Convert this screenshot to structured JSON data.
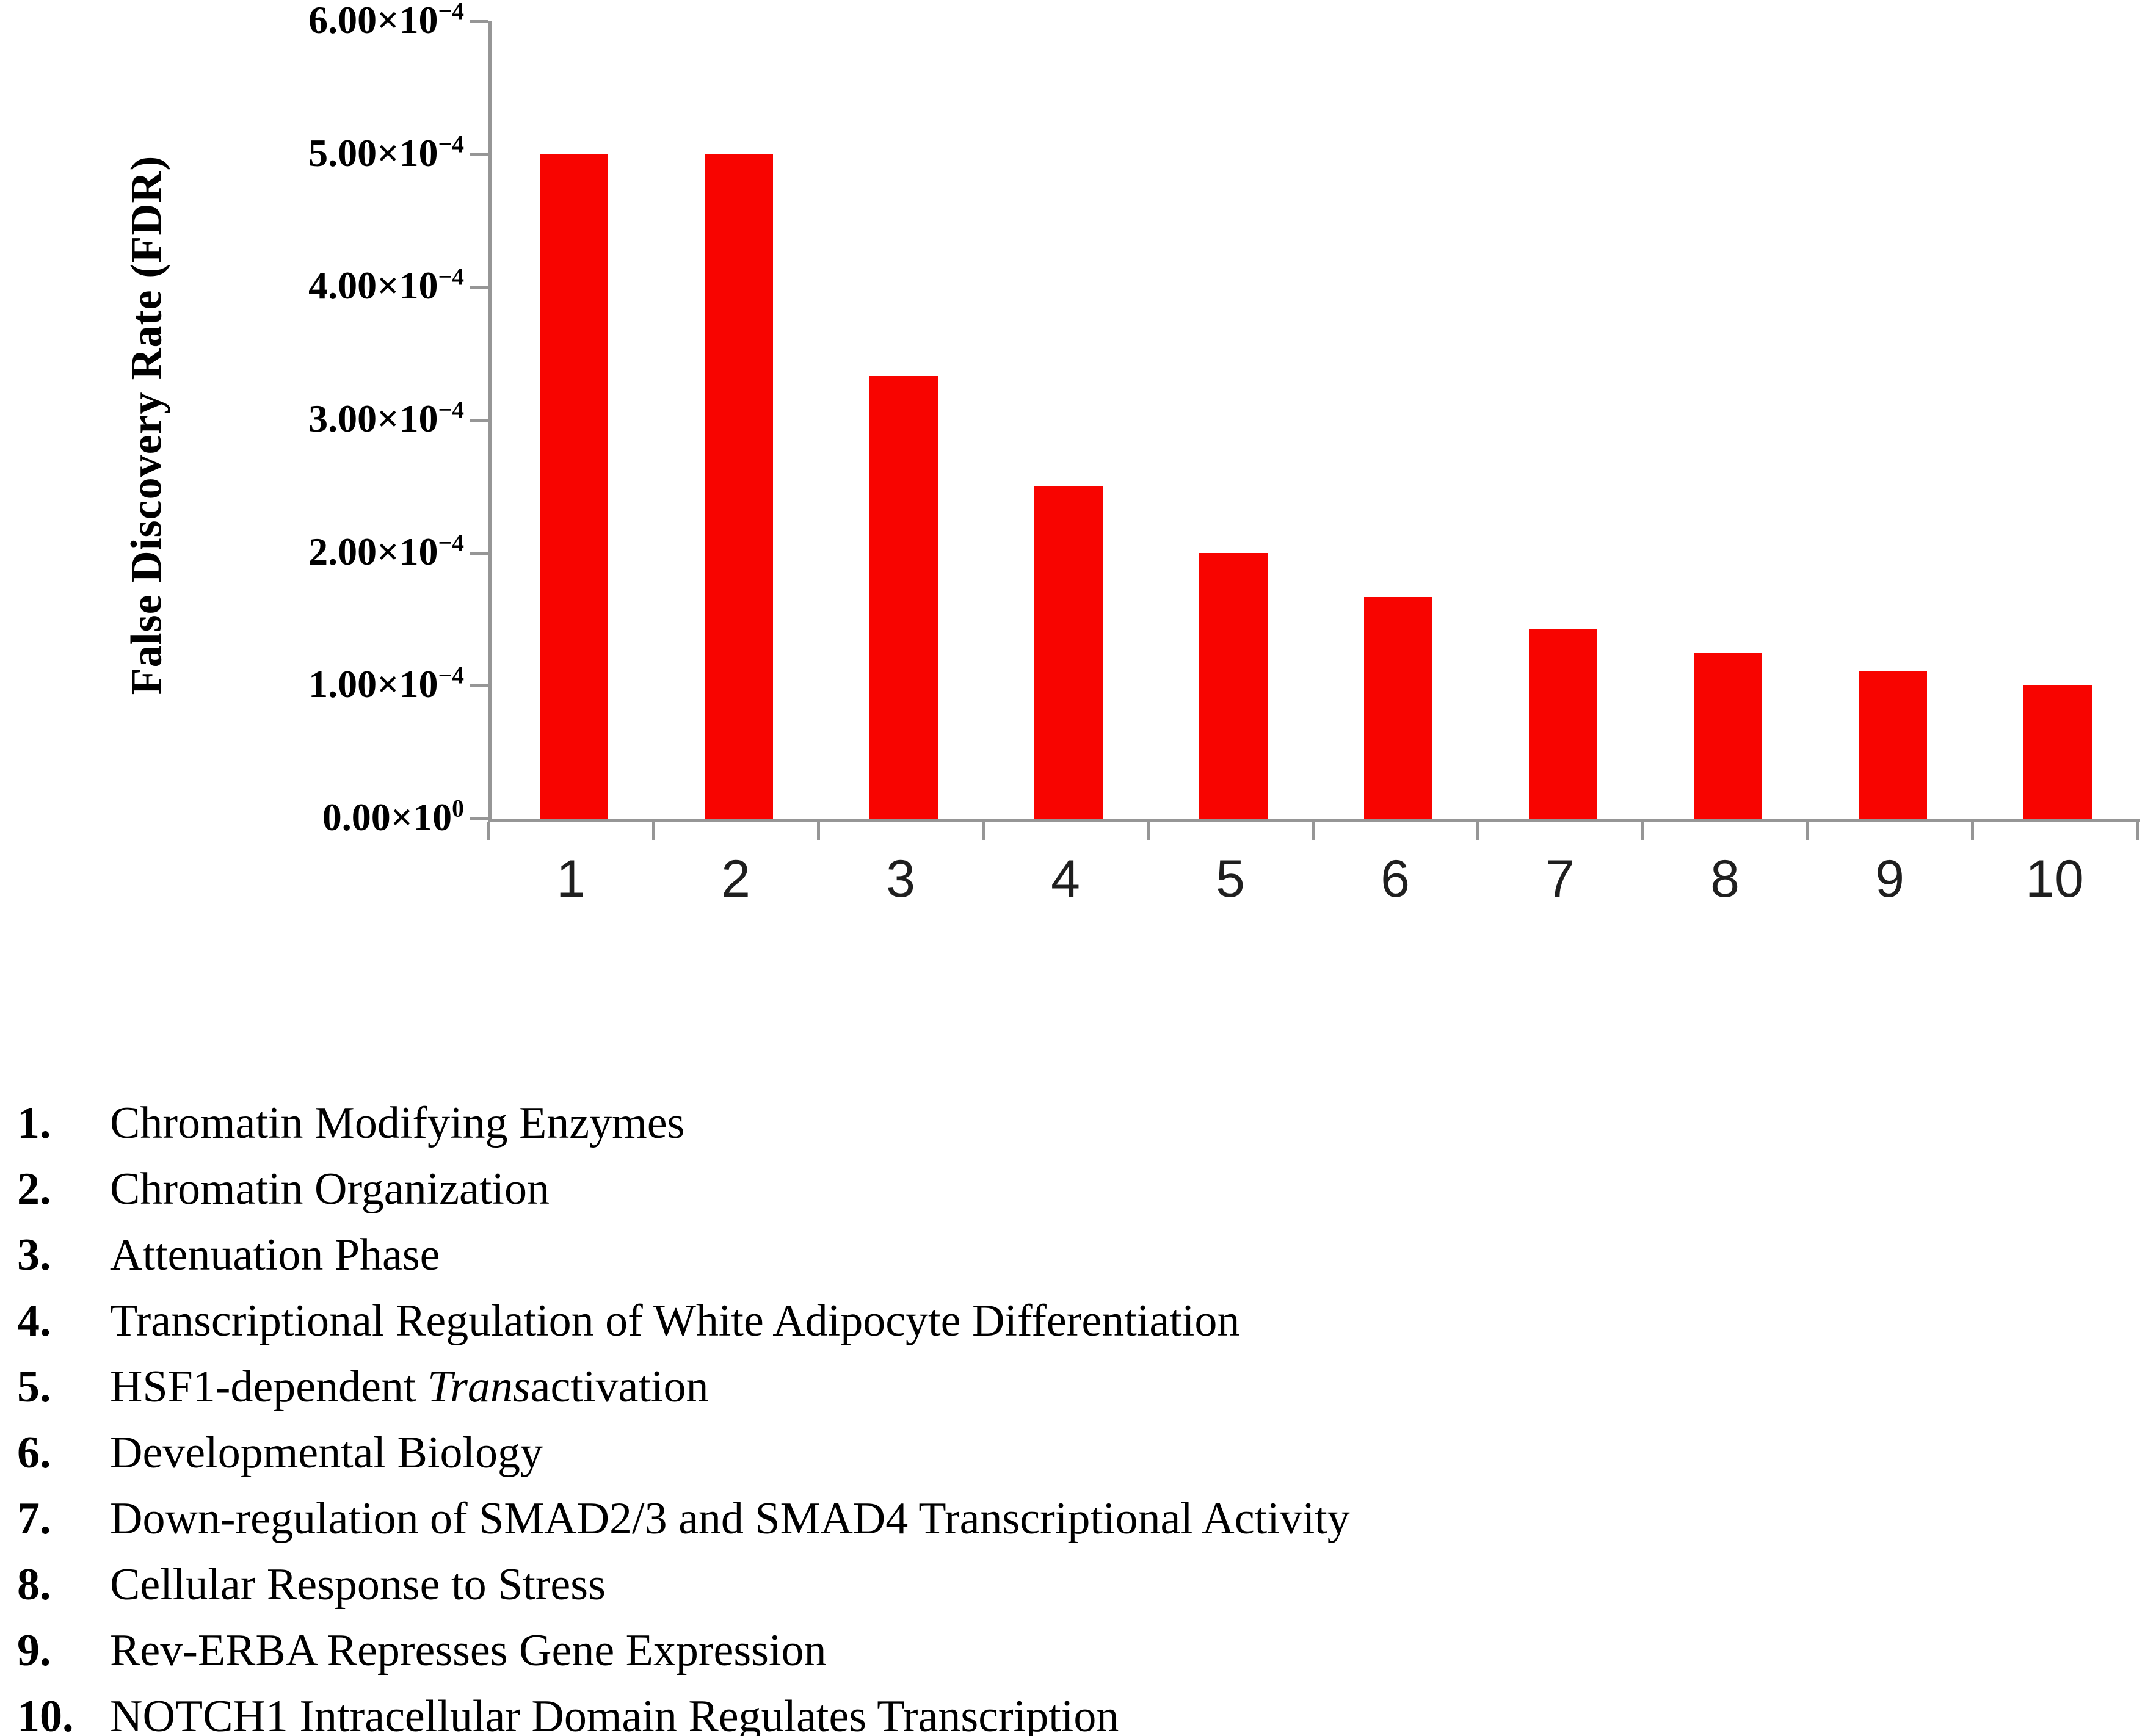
{
  "chart_data": {
    "type": "bar",
    "title": "",
    "xlabel": "",
    "ylabel": "False Discovery Rate (FDR)",
    "categories": [
      "1",
      "2",
      "3",
      "4",
      "5",
      "6",
      "7",
      "8",
      "9",
      "10"
    ],
    "values": [
      0.0005,
      0.0005,
      0.0003333,
      0.00025,
      0.0002,
      0.0001667,
      0.0001429,
      0.000125,
      0.0001111,
      0.0001
    ],
    "ylim": [
      0,
      0.0006
    ],
    "grid": false,
    "legend_position": "none",
    "bar_color": "#f80400",
    "axis_color": "#969696",
    "y_ticks": [
      {
        "v": 0.0,
        "base": "0.00×10",
        "exp": "0"
      },
      {
        "v": 0.0001,
        "base": "1.00×10",
        "exp": "−4"
      },
      {
        "v": 0.0002,
        "base": "2.00×10",
        "exp": "−4"
      },
      {
        "v": 0.0003,
        "base": "3.00×10",
        "exp": "−4"
      },
      {
        "v": 0.0004,
        "base": "4.00×10",
        "exp": "−4"
      },
      {
        "v": 0.0005,
        "base": "5.00×10",
        "exp": "−4"
      },
      {
        "v": 0.0006,
        "base": "6.00×10",
        "exp": "−4"
      }
    ]
  },
  "legend": {
    "items": [
      {
        "num": "1.",
        "segments": [
          {
            "text": "Chromatin Modifying Enzymes"
          }
        ]
      },
      {
        "num": "2.",
        "segments": [
          {
            "text": "Chromatin Organization"
          }
        ]
      },
      {
        "num": "3.",
        "segments": [
          {
            "text": "Attenuation Phase"
          }
        ]
      },
      {
        "num": "4.",
        "segments": [
          {
            "text": "Transcriptional Regulation of White Adipocyte Differentiation"
          }
        ]
      },
      {
        "num": "5.",
        "segments": [
          {
            "text": "HSF1-dependent "
          },
          {
            "text": "Trans",
            "italic": true
          },
          {
            "text": "activation"
          }
        ]
      },
      {
        "num": "6.",
        "segments": [
          {
            "text": "Developmental Biology"
          }
        ]
      },
      {
        "num": "7.",
        "segments": [
          {
            "text": "Down-regulation of SMAD2/3 and SMAD4 Transcriptional Activity"
          }
        ]
      },
      {
        "num": "8.",
        "segments": [
          {
            "text": "Cellular Response to Stress"
          }
        ]
      },
      {
        "num": "9.",
        "segments": [
          {
            "text": "Rev-ERBA Represses Gene Expression"
          }
        ]
      },
      {
        "num": "10.",
        "segments": [
          {
            "text": "NOTCH1 Intracellular Domain Regulates Transcription"
          }
        ]
      }
    ]
  }
}
